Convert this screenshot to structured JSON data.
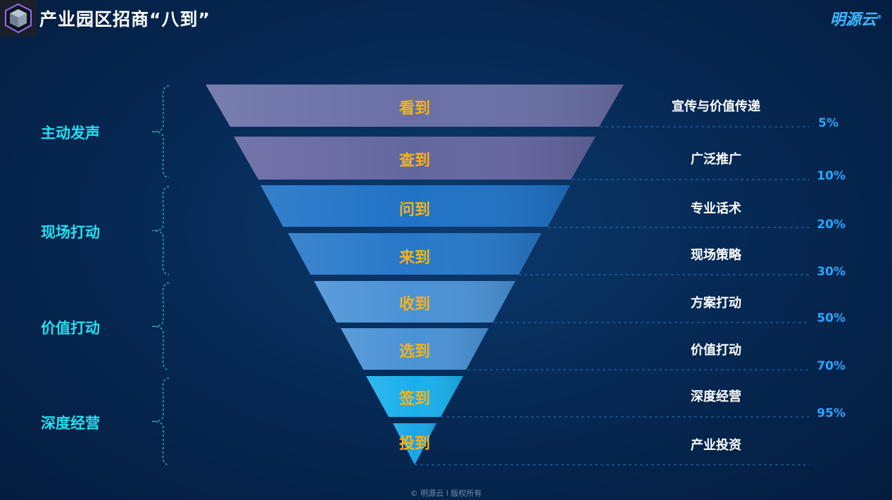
{
  "header": {
    "title": "产业园区招商“八到”",
    "brand": "明源云"
  },
  "groups": [
    "主动发声",
    "现场打动",
    "价值打动",
    "深度经营"
  ],
  "stages": [
    {
      "label": "看到",
      "desc": "宣传与价值传递",
      "pct": "5%"
    },
    {
      "label": "查到",
      "desc": "广泛推广",
      "pct": "10%"
    },
    {
      "label": "问到",
      "desc": "专业话术",
      "pct": "20%"
    },
    {
      "label": "来到",
      "desc": "现场策略",
      "pct": "30%"
    },
    {
      "label": "收到",
      "desc": "方案打动",
      "pct": "50%"
    },
    {
      "label": "选到",
      "desc": "价值打动",
      "pct": "70%"
    },
    {
      "label": "签到",
      "desc": "深度经营",
      "pct": "95%"
    },
    {
      "label": "投到",
      "desc": "产业投资"
    }
  ],
  "footer": {
    "text": "© 明源云   l 版权所有"
  }
}
